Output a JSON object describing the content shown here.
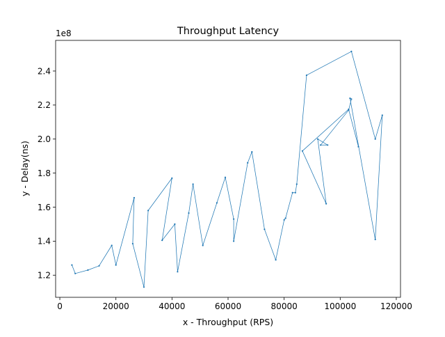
{
  "chart_data": {
    "type": "line",
    "title": "Throughput Latency",
    "xlabel": "x - Throughput (RPS)",
    "ylabel": "y - Delay(ns)",
    "y_offset_label": "1e8",
    "xlim": [
      -1500,
      121500
    ],
    "ylim": [
      107000000,
      258000000
    ],
    "x_ticks": [
      0,
      20000,
      40000,
      60000,
      80000,
      100000,
      120000
    ],
    "x_tick_labels": [
      "0",
      "20000",
      "40000",
      "60000",
      "80000",
      "100000",
      "120000"
    ],
    "y_ticks": [
      120000000,
      140000000,
      160000000,
      180000000,
      200000000,
      220000000,
      240000000
    ],
    "y_tick_labels": [
      "1.2",
      "1.4",
      "1.6",
      "1.8",
      "2.0",
      "2.2",
      "2.4"
    ],
    "grid": false,
    "legend": "none",
    "line_color": "#1f77b4",
    "series": [
      {
        "points": [
          [
            4300,
            126000000
          ],
          [
            5500,
            121000000
          ],
          [
            10000,
            123000000
          ],
          [
            14000,
            125500000
          ],
          [
            18500,
            137500000
          ],
          [
            20000,
            126000000
          ],
          [
            26500,
            165500000
          ],
          [
            26000,
            138500000
          ],
          [
            30000,
            113000000
          ],
          [
            31500,
            158000000
          ],
          [
            40000,
            177000000
          ],
          [
            36500,
            140500000
          ],
          [
            41000,
            150000000
          ],
          [
            42000,
            122000000
          ],
          [
            46000,
            156500000
          ],
          [
            47500,
            173500000
          ],
          [
            51000,
            137500000
          ],
          [
            56000,
            162500000
          ],
          [
            59000,
            177500000
          ],
          [
            62000,
            153000000
          ],
          [
            62000,
            140000000
          ],
          [
            67000,
            186000000
          ],
          [
            68500,
            192500000
          ],
          [
            73000,
            147000000
          ],
          [
            77000,
            129000000
          ],
          [
            80000,
            152500000
          ],
          [
            80500,
            153500000
          ],
          [
            83000,
            168500000
          ],
          [
            84000,
            168500000
          ],
          [
            84500,
            173500000
          ],
          [
            88000,
            237500000
          ],
          [
            104000,
            251500000
          ],
          [
            112500,
            200000000
          ],
          [
            115000,
            214000000
          ],
          [
            112500,
            141000000
          ],
          [
            103500,
            224000000
          ],
          [
            104000,
            223500000
          ],
          [
            103000,
            217000000
          ],
          [
            93000,
            196500000
          ],
          [
            95500,
            196500000
          ],
          [
            92000,
            200000000
          ],
          [
            95000,
            162000000
          ],
          [
            86500,
            193000000
          ],
          [
            103000,
            217500000
          ],
          [
            106500,
            195500000
          ]
        ]
      }
    ]
  }
}
